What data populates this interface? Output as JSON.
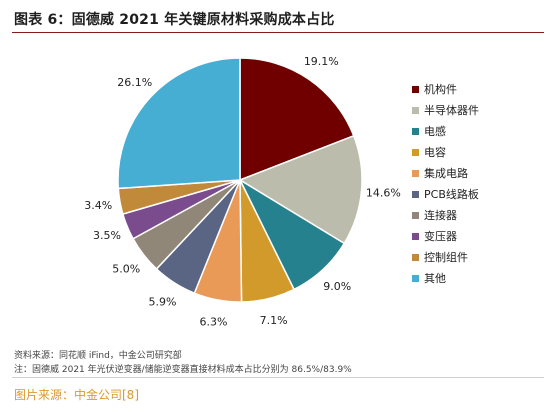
{
  "chart_data": {
    "type": "pie",
    "title": "图表 6：固德威 2021 年关键原材料采购成本占比",
    "categories": [
      "机构件",
      "半导体器件",
      "电感",
      "电容",
      "集成电路",
      "PCB线路板",
      "连接器",
      "变压器",
      "控制组件",
      "其他"
    ],
    "values": [
      19.1,
      14.6,
      9.0,
      7.1,
      6.3,
      5.9,
      5.0,
      3.5,
      3.4,
      26.1
    ],
    "value_labels": [
      "19.1%",
      "14.6%",
      "9.0%",
      "7.1%",
      "6.3%",
      "5.9%",
      "5.0%",
      "3.5%",
      "3.4%",
      "26.1%"
    ],
    "colors": [
      "#700000",
      "#bcbcac",
      "#26818f",
      "#d19a2a",
      "#e99a57",
      "#5a6584",
      "#918778",
      "#7a4c8e",
      "#c18a3b",
      "#45aed2"
    ],
    "legend_position": "right"
  },
  "source": "资料来源：同花顺 iFind，中金公司研究部",
  "note": "注：固德威 2021 年光伏逆变器/储能逆变器直接材料成本占比分别为 86.5%/83.9%",
  "caption": "图片来源：中金公司[8]"
}
